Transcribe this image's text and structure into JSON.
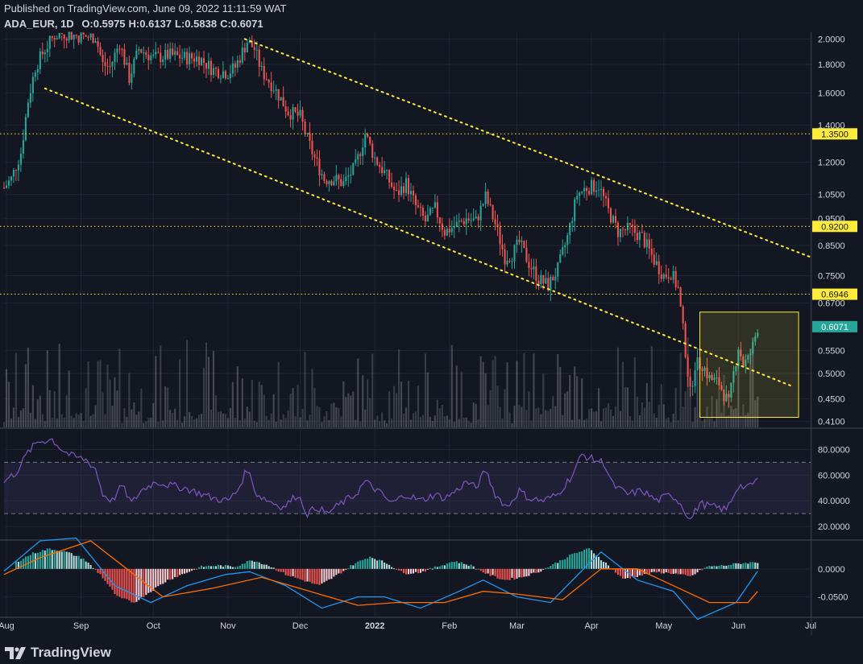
{
  "header": {
    "published": "Published on TradingView.com, June 09, 2022 11:11:59 WAT",
    "symbol": "ADA_EUR, 1D",
    "ohlc": [
      {
        "k": "O:",
        "v": "0.5975"
      },
      {
        "k": "H:",
        "v": "0.6137"
      },
      {
        "k": "L:",
        "v": "0.5838"
      },
      {
        "k": "C:",
        "v": "0.6071"
      }
    ]
  },
  "brand": {
    "name": "TradingView"
  },
  "colors": {
    "background": "#131722",
    "grid": "#1f2430",
    "up": "#26a69a",
    "down": "#ef5350",
    "level": "#ffeb3b",
    "rsi": "#7e57c2",
    "macd": "#2196f3",
    "signal": "#ff6d00"
  },
  "chart_data": {
    "type": "candlestick",
    "y_scale": "log",
    "ylim": [
      0.4,
      2.03
    ],
    "y_ticks": [
      "2.0000",
      "1.8000",
      "1.6000",
      "1.4000",
      "1.2000",
      "1.0500",
      "0.9500",
      "0.8500",
      "0.7500",
      "0.6700",
      "0.5500",
      "0.5000",
      "0.4500",
      "0.4100"
    ],
    "y_tick_values": [
      2.0,
      1.8,
      1.6,
      1.4,
      1.2,
      1.05,
      0.95,
      0.85,
      0.75,
      0.67,
      0.55,
      0.5,
      0.45,
      0.41
    ],
    "x_ticks": [
      "Aug",
      "Sep",
      "Oct",
      "Nov",
      "Dec",
      "2022",
      "Feb",
      "Mar",
      "Apr",
      "May",
      "Jun",
      "Jul"
    ],
    "x_tick_dates": [
      "2021-08-01",
      "2021-09-01",
      "2021-10-01",
      "2021-11-01",
      "2021-12-01",
      "2022-01-01",
      "2022-02-01",
      "2022-03-01",
      "2022-04-01",
      "2022-05-01",
      "2022-06-01",
      "2022-07-01"
    ],
    "x_range": [
      "2021-07-31",
      "2022-07-01"
    ],
    "price_path": [
      [
        "2021-07-31",
        1.08
      ],
      [
        "2021-08-03",
        1.12
      ],
      [
        "2021-08-07",
        1.25
      ],
      [
        "2021-08-10",
        1.55
      ],
      [
        "2021-08-13",
        1.78
      ],
      [
        "2021-08-17",
        1.92
      ],
      [
        "2021-08-21",
        2.03
      ],
      [
        "2021-08-25",
        2.05
      ],
      [
        "2021-09-01",
        2.02
      ],
      [
        "2021-09-07",
        2.02
      ],
      [
        "2021-09-10",
        1.8
      ],
      [
        "2021-09-13",
        1.78
      ],
      [
        "2021-09-17",
        1.97
      ],
      [
        "2021-09-21",
        1.7
      ],
      [
        "2021-09-25",
        1.92
      ],
      [
        "2021-10-01",
        1.85
      ],
      [
        "2021-10-08",
        1.87
      ],
      [
        "2021-10-15",
        1.85
      ],
      [
        "2021-10-20",
        1.85
      ],
      [
        "2021-10-26",
        1.76
      ],
      [
        "2021-11-01",
        1.74
      ],
      [
        "2021-11-04",
        1.78
      ],
      [
        "2021-11-09",
        1.98
      ],
      [
        "2021-11-12",
        1.92
      ],
      [
        "2021-11-15",
        1.75
      ],
      [
        "2021-11-20",
        1.64
      ],
      [
        "2021-11-26",
        1.48
      ],
      [
        "2021-12-01",
        1.45
      ],
      [
        "2021-12-04",
        1.32
      ],
      [
        "2021-12-07",
        1.22
      ],
      [
        "2021-12-11",
        1.12
      ],
      [
        "2021-12-15",
        1.12
      ],
      [
        "2021-12-19",
        1.1
      ],
      [
        "2021-12-24",
        1.18
      ],
      [
        "2021-12-28",
        1.35
      ],
      [
        "2022-01-01",
        1.22
      ],
      [
        "2022-01-05",
        1.15
      ],
      [
        "2022-01-10",
        1.05
      ],
      [
        "2022-01-14",
        1.1
      ],
      [
        "2022-01-18",
        1.0
      ],
      [
        "2022-01-22",
        0.94
      ],
      [
        "2022-01-26",
        0.99
      ],
      [
        "2022-01-30",
        0.9
      ],
      [
        "2022-02-03",
        0.92
      ],
      [
        "2022-02-08",
        0.95
      ],
      [
        "2022-02-12",
        0.94
      ],
      [
        "2022-02-16",
        1.04
      ],
      [
        "2022-02-20",
        0.93
      ],
      [
        "2022-02-24",
        0.81
      ],
      [
        "2022-02-27",
        0.82
      ],
      [
        "2022-03-02",
        0.86
      ],
      [
        "2022-03-06",
        0.79
      ],
      [
        "2022-03-10",
        0.74
      ],
      [
        "2022-03-14",
        0.72
      ],
      [
        "2022-03-18",
        0.77
      ],
      [
        "2022-03-22",
        0.88
      ],
      [
        "2022-03-26",
        1.05
      ],
      [
        "2022-03-30",
        1.08
      ],
      [
        "2022-04-04",
        1.09
      ],
      [
        "2022-04-08",
        0.98
      ],
      [
        "2022-04-12",
        0.9
      ],
      [
        "2022-04-17",
        0.91
      ],
      [
        "2022-04-22",
        0.88
      ],
      [
        "2022-04-27",
        0.8
      ],
      [
        "2022-05-01",
        0.75
      ],
      [
        "2022-05-04",
        0.76
      ],
      [
        "2022-05-07",
        0.71
      ],
      [
        "2022-05-10",
        0.55
      ],
      [
        "2022-05-12",
        0.46
      ],
      [
        "2022-05-14",
        0.52
      ],
      [
        "2022-05-17",
        0.52
      ],
      [
        "2022-05-20",
        0.49
      ],
      [
        "2022-05-24",
        0.48
      ],
      [
        "2022-05-28",
        0.44
      ],
      [
        "2022-05-30",
        0.5
      ],
      [
        "2022-06-01",
        0.56
      ],
      [
        "2022-06-03",
        0.52
      ],
      [
        "2022-06-05",
        0.53
      ],
      [
        "2022-06-07",
        0.56
      ],
      [
        "2022-06-09",
        0.6071
      ]
    ],
    "horizontal_levels": [
      {
        "value": 1.35,
        "label": "1.3500"
      },
      {
        "value": 0.92,
        "label": "0.9200"
      },
      {
        "value": 0.6946,
        "label": "0.6946"
      }
    ],
    "last_price": {
      "value": 0.6071,
      "label": "0.6071"
    },
    "trendlines": [
      {
        "from": [
          "2021-11-08",
          2.0
        ],
        "to": [
          "2022-07-01",
          0.81
        ]
      },
      {
        "from": [
          "2021-08-17",
          1.63
        ],
        "to": [
          "2022-06-23",
          0.475
        ]
      }
    ],
    "highlight_box": {
      "x0": "2022-05-16",
      "x1": "2022-06-26",
      "y0": 0.417,
      "y1": 0.645
    },
    "rsi": {
      "ticks": [
        "80.0000",
        "60.0000",
        "40.0000",
        "20.0000"
      ],
      "tick_values": [
        80,
        60,
        40,
        20
      ],
      "ylim": [
        10,
        96
      ],
      "band": [
        30,
        70
      ],
      "path": [
        [
          "2021-07-31",
          55
        ],
        [
          "2021-08-05",
          62
        ],
        [
          "2021-08-10",
          78
        ],
        [
          "2021-08-14",
          86
        ],
        [
          "2021-08-20",
          88
        ],
        [
          "2021-08-24",
          80
        ],
        [
          "2021-08-28",
          75
        ],
        [
          "2021-09-03",
          72
        ],
        [
          "2021-09-07",
          65
        ],
        [
          "2021-09-10",
          45
        ],
        [
          "2021-09-14",
          40
        ],
        [
          "2021-09-18",
          52
        ],
        [
          "2021-09-22",
          38
        ],
        [
          "2021-09-26",
          48
        ],
        [
          "2021-10-02",
          55
        ],
        [
          "2021-10-08",
          52
        ],
        [
          "2021-10-14",
          50
        ],
        [
          "2021-10-20",
          46
        ],
        [
          "2021-10-26",
          42
        ],
        [
          "2021-11-01",
          40
        ],
        [
          "2021-11-05",
          48
        ],
        [
          "2021-11-09",
          65
        ],
        [
          "2021-11-13",
          45
        ],
        [
          "2021-11-18",
          40
        ],
        [
          "2021-11-24",
          35
        ],
        [
          "2021-11-30",
          45
        ],
        [
          "2021-12-04",
          30
        ],
        [
          "2021-12-08",
          35
        ],
        [
          "2021-12-12",
          30
        ],
        [
          "2021-12-18",
          38
        ],
        [
          "2021-12-24",
          45
        ],
        [
          "2021-12-28",
          55
        ],
        [
          "2022-01-02",
          48
        ],
        [
          "2022-01-08",
          38
        ],
        [
          "2022-01-14",
          45
        ],
        [
          "2022-01-20",
          40
        ],
        [
          "2022-01-26",
          45
        ],
        [
          "2022-01-30",
          42
        ],
        [
          "2022-02-04",
          48
        ],
        [
          "2022-02-08",
          55
        ],
        [
          "2022-02-12",
          50
        ],
        [
          "2022-02-16",
          64
        ],
        [
          "2022-02-20",
          45
        ],
        [
          "2022-02-25",
          35
        ],
        [
          "2022-03-02",
          48
        ],
        [
          "2022-03-06",
          42
        ],
        [
          "2022-03-12",
          40
        ],
        [
          "2022-03-18",
          45
        ],
        [
          "2022-03-24",
          60
        ],
        [
          "2022-03-28",
          76
        ],
        [
          "2022-04-02",
          72
        ],
        [
          "2022-04-06",
          70
        ],
        [
          "2022-04-10",
          52
        ],
        [
          "2022-04-16",
          45
        ],
        [
          "2022-04-22",
          48
        ],
        [
          "2022-04-28",
          40
        ],
        [
          "2022-05-04",
          45
        ],
        [
          "2022-05-08",
          38
        ],
        [
          "2022-05-12",
          25
        ],
        [
          "2022-05-16",
          38
        ],
        [
          "2022-05-22",
          35
        ],
        [
          "2022-05-27",
          33
        ],
        [
          "2022-06-01",
          52
        ],
        [
          "2022-06-05",
          50
        ],
        [
          "2022-06-09",
          57
        ]
      ]
    },
    "macd": {
      "ticks": [
        "0.0000",
        "-0.0500"
      ],
      "tick_values": [
        0.0,
        -0.05
      ],
      "ylim": [
        -0.085,
        0.05
      ],
      "histogram": [
        [
          "2021-08-05",
          0.012
        ],
        [
          "2021-08-12",
          0.028
        ],
        [
          "2021-08-19",
          0.036
        ],
        [
          "2021-08-26",
          0.03
        ],
        [
          "2021-09-02",
          0.018
        ],
        [
          "2021-09-09",
          -0.01
        ],
        [
          "2021-09-16",
          -0.05
        ],
        [
          "2021-09-23",
          -0.06
        ],
        [
          "2021-09-30",
          -0.04
        ],
        [
          "2021-10-07",
          -0.02
        ],
        [
          "2021-10-14",
          -0.008
        ],
        [
          "2021-10-21",
          0.004
        ],
        [
          "2021-10-28",
          0.006
        ],
        [
          "2021-11-04",
          0.004
        ],
        [
          "2021-11-11",
          0.016
        ],
        [
          "2021-11-18",
          0.006
        ],
        [
          "2021-11-25",
          -0.01
        ],
        [
          "2021-12-02",
          -0.02
        ],
        [
          "2021-12-09",
          -0.03
        ],
        [
          "2021-12-16",
          -0.012
        ],
        [
          "2021-12-23",
          0.008
        ],
        [
          "2021-12-30",
          0.022
        ],
        [
          "2022-01-06",
          0.01
        ],
        [
          "2022-01-13",
          -0.008
        ],
        [
          "2022-01-20",
          -0.006
        ],
        [
          "2022-01-27",
          0.004
        ],
        [
          "2022-02-03",
          0.014
        ],
        [
          "2022-02-10",
          0.006
        ],
        [
          "2022-02-17",
          -0.01
        ],
        [
          "2022-02-24",
          -0.02
        ],
        [
          "2022-03-03",
          -0.015
        ],
        [
          "2022-03-10",
          -0.005
        ],
        [
          "2022-03-17",
          0.01
        ],
        [
          "2022-03-24",
          0.026
        ],
        [
          "2022-03-31",
          0.036
        ],
        [
          "2022-04-07",
          0.01
        ],
        [
          "2022-04-14",
          -0.018
        ],
        [
          "2022-04-21",
          -0.012
        ],
        [
          "2022-04-28",
          -0.006
        ],
        [
          "2022-05-05",
          -0.008
        ],
        [
          "2022-05-12",
          -0.014
        ],
        [
          "2022-05-19",
          0.004
        ],
        [
          "2022-05-26",
          0.006
        ],
        [
          "2022-06-02",
          0.01
        ],
        [
          "2022-06-09",
          0.012
        ]
      ],
      "macd_line": [
        [
          "2021-07-31",
          -0.004
        ],
        [
          "2021-08-15",
          0.05
        ],
        [
          "2021-08-30",
          0.055
        ],
        [
          "2021-09-15",
          -0.03
        ],
        [
          "2021-09-30",
          -0.06
        ],
        [
          "2021-10-15",
          -0.03
        ],
        [
          "2021-10-31",
          -0.01
        ],
        [
          "2021-11-10",
          -0.005
        ],
        [
          "2021-11-25",
          -0.03
        ],
        [
          "2021-12-10",
          -0.07
        ],
        [
          "2021-12-25",
          -0.05
        ],
        [
          "2022-01-05",
          -0.05
        ],
        [
          "2022-01-20",
          -0.07
        ],
        [
          "2022-02-05",
          -0.04
        ],
        [
          "2022-02-15",
          -0.02
        ],
        [
          "2022-03-01",
          -0.05
        ],
        [
          "2022-03-15",
          -0.06
        ],
        [
          "2022-03-31",
          0.01
        ],
        [
          "2022-04-05",
          0.03
        ],
        [
          "2022-04-20",
          -0.02
        ],
        [
          "2022-05-05",
          -0.04
        ],
        [
          "2022-05-15",
          -0.09
        ],
        [
          "2022-05-31",
          -0.06
        ],
        [
          "2022-06-09",
          -0.004
        ]
      ],
      "signal_line": [
        [
          "2021-07-31",
          -0.01
        ],
        [
          "2021-08-15",
          0.02
        ],
        [
          "2021-09-05",
          0.05
        ],
        [
          "2021-09-20",
          0.0
        ],
        [
          "2021-10-05",
          -0.05
        ],
        [
          "2021-10-25",
          -0.035
        ],
        [
          "2021-11-15",
          -0.015
        ],
        [
          "2021-12-05",
          -0.04
        ],
        [
          "2021-12-25",
          -0.065
        ],
        [
          "2022-01-10",
          -0.06
        ],
        [
          "2022-01-30",
          -0.06
        ],
        [
          "2022-02-15",
          -0.04
        ],
        [
          "2022-03-01",
          -0.045
        ],
        [
          "2022-03-20",
          -0.055
        ],
        [
          "2022-04-05",
          0.0
        ],
        [
          "2022-04-20",
          0.0
        ],
        [
          "2022-05-05",
          -0.03
        ],
        [
          "2022-05-20",
          -0.06
        ],
        [
          "2022-06-05",
          -0.06
        ],
        [
          "2022-06-09",
          -0.04
        ]
      ]
    }
  }
}
